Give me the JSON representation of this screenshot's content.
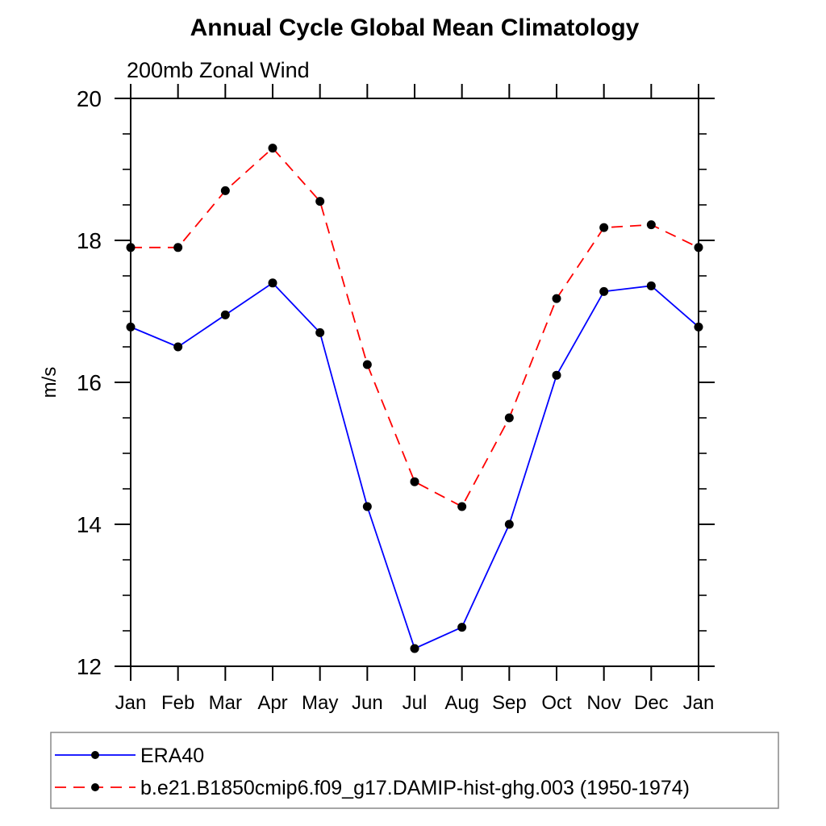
{
  "chart_data": {
    "type": "line",
    "title": "Annual Cycle Global Mean Climatology",
    "subtitle": "200mb Zonal Wind",
    "xlabel": "",
    "ylabel": "m/s",
    "categories": [
      "Jan",
      "Feb",
      "Mar",
      "Apr",
      "May",
      "Jun",
      "Jul",
      "Aug",
      "Sep",
      "Oct",
      "Nov",
      "Dec",
      "Jan"
    ],
    "ylim": [
      12,
      20
    ],
    "yticks_major": [
      12,
      14,
      16,
      18,
      20
    ],
    "yticks_minor": [
      12.5,
      13,
      13.5,
      14.5,
      15,
      15.5,
      16.5,
      17,
      17.5,
      18.5,
      19,
      19.5
    ],
    "grid": false,
    "legend_position": "bottom-left-box",
    "series": [
      {
        "name": "ERA40",
        "color": "#0000ff",
        "line_style": "solid",
        "marker": "filled-circle",
        "marker_color": "#000000",
        "values": [
          16.78,
          16.5,
          16.95,
          17.4,
          16.7,
          14.25,
          12.25,
          12.55,
          14.0,
          16.1,
          17.28,
          17.36,
          16.78
        ]
      },
      {
        "name": "b.e21.B1850cmip6.f09_g17.DAMIP-hist-ghg.003 (1950-1974)",
        "color": "#ff0000",
        "line_style": "dashed",
        "marker": "filled-circle",
        "marker_color": "#000000",
        "values": [
          17.9,
          17.9,
          18.7,
          19.3,
          18.55,
          16.25,
          14.6,
          14.25,
          15.5,
          17.18,
          18.18,
          18.22,
          17.9
        ]
      }
    ]
  },
  "colors": {
    "background": "#ffffff",
    "axis": "#000000",
    "legend_border": "#888888",
    "era40_line": "#0000ff",
    "model_line": "#ff0000",
    "marker": "#000000"
  }
}
